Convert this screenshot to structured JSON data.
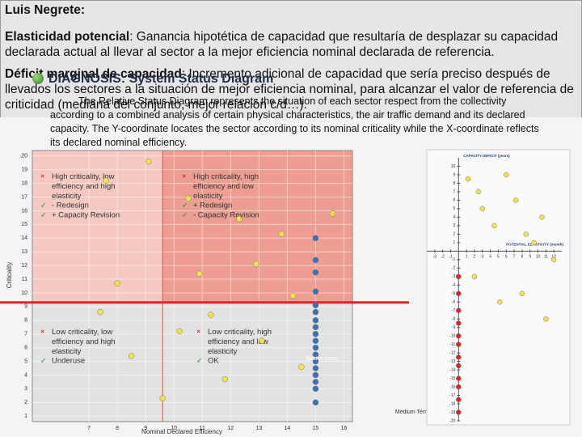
{
  "header": {
    "author": "Luis Negrete:",
    "definitions": [
      {
        "term": "Elasticidad potencial",
        "text": ": Ganancia hipotética de capacidad que resultaría de desplazar su capacidad declarada actual al llevar al sector a la mejor eficiencia nominal declarada de referencia."
      },
      {
        "term": "Déficit marginal de capacidad",
        "text": ": Incremento adicional de capacidad que sería preciso después de llevados los sectores a la situación de mejor eficiencia nominal, para alcanzar el valor de referencia de criticidad (mediana del conjunto, mejor relación c/d…)."
      }
    ]
  },
  "slide": {
    "title": "DIAGNOSIS: System Status Diagram",
    "description": "The Relative Status Diagram represents the situation of each sector respect from the collectivity according to a combined analysis of certain physical characteristics, the air traffic demand and its declared capacity. The Y-coordinate locates the sector according to its nominal criticality while the X-coordinate reflects its declared nominal efficiency."
  },
  "chart_data": [
    {
      "type": "scatter",
      "xlabel": "Nominal Declared Efficiency",
      "ylabel": "Criticality",
      "xlim": [
        5,
        16.3
      ],
      "ylim": [
        0.6,
        20.4
      ],
      "xticks": [
        7,
        8,
        9,
        10,
        11,
        12,
        13,
        14,
        15,
        16
      ],
      "yticks": [
        1,
        2,
        3,
        4,
        5,
        6,
        7,
        8,
        9,
        10,
        11,
        12,
        13,
        14,
        15,
        16,
        17,
        18,
        19,
        20
      ],
      "reference_lines": {
        "criticality": 9.3,
        "efficiency": 9.6
      },
      "series": [
        {
          "color": "#f2e14a",
          "x": [
            9.1,
            7.6,
            10.5,
            12.3,
            13.8,
            8,
            12.9,
            10.9,
            14.2,
            7.4,
            11.3,
            10.2,
            13.1,
            8.5,
            14.5,
            11.8,
            9.6,
            15.6
          ],
          "values": [
            19.6,
            18.2,
            16.9,
            15.4,
            14.3,
            10.7,
            12.1,
            11.4,
            9.8,
            8.6,
            8.4,
            7.2,
            6.5,
            5.4,
            4.6,
            3.7,
            2.3,
            15.8
          ]
        },
        {
          "color": "#3b6fb6",
          "x": [
            15,
            15,
            15,
            15,
            15,
            15,
            15,
            15,
            15,
            15,
            15,
            15,
            15,
            15,
            15,
            15,
            15,
            15
          ],
          "values": [
            14,
            12.4,
            11.5,
            10.1,
            9.1,
            8.6,
            8,
            7.5,
            7,
            6.5,
            6,
            5.5,
            5,
            4.5,
            4,
            3.5,
            3,
            2
          ]
        }
      ],
      "quadrants": [
        {
          "title": "High criticality, low efficiency and high elasticity",
          "actions": [
            "- Redesign",
            "+ Capacity Revision"
          ]
        },
        {
          "title": "High criticality, high efficiency and low elasticity",
          "actions": [
            "+ Redesign",
            "- Capacity Revision"
          ]
        },
        {
          "title": "Low criticality, low efficiency and high elasticity",
          "actions": [
            "Underuse"
          ]
        },
        {
          "title": "Low criticality, high efficiency and low elasticity",
          "actions": [
            "OK"
          ]
        }
      ],
      "annotations": [
        "Best in class",
        "Medium Term"
      ]
    },
    {
      "type": "scatter",
      "ylabel": "CAPACITY DEFICIT (years)",
      "xlabel": "POTENTIAL ELASTICITY (month)",
      "xlim": [
        -4,
        13
      ],
      "ylim": [
        -20,
        11
      ],
      "xticks": [
        -3,
        -2,
        -1,
        1,
        2,
        3,
        4,
        5,
        6,
        7,
        8,
        9,
        10,
        11,
        12
      ],
      "yticks": [
        10,
        9,
        8,
        7,
        6,
        5,
        4,
        3,
        2,
        1,
        -1,
        -2,
        -3,
        -4,
        -5,
        -6,
        -7,
        -8,
        -9,
        -10,
        -11,
        -12,
        -13,
        -14,
        -15,
        -16,
        -17,
        -18,
        -19,
        -20
      ],
      "series": [
        {
          "color": "#f2e14a",
          "x": [
            1.2,
            2.5,
            3,
            4.5,
            6,
            7.2,
            8.5,
            9.5,
            10.5,
            12,
            2,
            5.2,
            8,
            11
          ],
          "values": [
            8.5,
            7,
            5,
            3,
            9,
            6,
            2,
            1,
            4,
            -1,
            -3,
            -6,
            -5,
            -8
          ]
        },
        {
          "color": "#d62828",
          "x": [
            0,
            0,
            0,
            0,
            0,
            0,
            0,
            0,
            0,
            0,
            0,
            0
          ],
          "values": [
            -3,
            -5,
            -7,
            -8.5,
            -10,
            -11,
            -12.5,
            -13.5,
            -15,
            -16,
            -17.5,
            -19
          ]
        }
      ]
    }
  ]
}
